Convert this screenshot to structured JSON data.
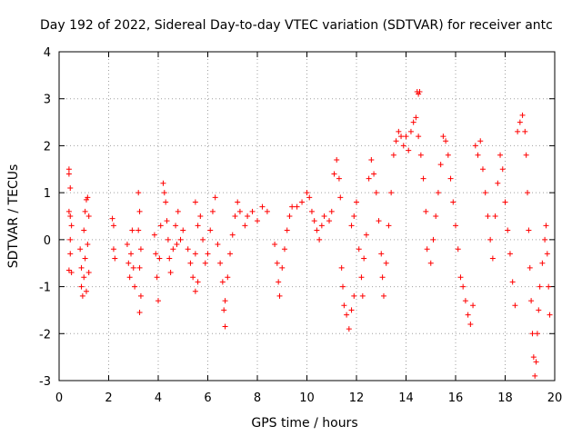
{
  "chart_data": {
    "type": "scatter",
    "title": "Day 192 of 2022, Sidereal Day-to-day VTEC variation (SDTVAR) for receiver antc",
    "xlabel": "GPS time / hours",
    "ylabel": "SDTVAR / TECUs",
    "xlim": [
      0,
      20
    ],
    "ylim": [
      -3,
      4
    ],
    "xticks": [
      "0",
      "2",
      "4",
      "6",
      "8",
      "10",
      "12",
      "14",
      "16",
      "18",
      "20"
    ],
    "yticks": [
      "-3",
      "-2",
      "-1",
      "0",
      "1",
      "2",
      "3",
      "4"
    ],
    "grid": true,
    "marker": "+",
    "color": "#ff0000",
    "series": [
      {
        "name": "SDTVAR",
        "points": [
          [
            0.4,
            1.5
          ],
          [
            0.4,
            1.4
          ],
          [
            0.45,
            1.1
          ],
          [
            0.4,
            0.6
          ],
          [
            0.45,
            0.5
          ],
          [
            0.5,
            0.3
          ],
          [
            0.45,
            0.0
          ],
          [
            0.45,
            -0.3
          ],
          [
            0.4,
            -0.65
          ],
          [
            0.5,
            -0.7
          ],
          [
            0.85,
            -0.2
          ],
          [
            0.9,
            -0.6
          ],
          [
            0.9,
            -1.0
          ],
          [
            0.95,
            -1.2
          ],
          [
            1.0,
            -0.8
          ],
          [
            1.05,
            -0.4
          ],
          [
            1.0,
            0.2
          ],
          [
            1.05,
            0.6
          ],
          [
            1.1,
            0.85
          ],
          [
            1.15,
            0.9
          ],
          [
            1.2,
            0.5
          ],
          [
            1.15,
            -0.1
          ],
          [
            1.2,
            -0.7
          ],
          [
            1.1,
            -1.1
          ],
          [
            2.15,
            0.45
          ],
          [
            2.2,
            0.3
          ],
          [
            2.2,
            -0.2
          ],
          [
            2.25,
            -0.4
          ],
          [
            2.75,
            -0.1
          ],
          [
            2.8,
            -0.5
          ],
          [
            2.85,
            -0.8
          ],
          [
            2.9,
            -0.3
          ],
          [
            2.95,
            0.2
          ],
          [
            3.0,
            -0.6
          ],
          [
            3.05,
            -1.0
          ],
          [
            3.2,
            1.0
          ],
          [
            3.25,
            0.6
          ],
          [
            3.2,
            0.2
          ],
          [
            3.3,
            -0.2
          ],
          [
            3.25,
            -0.6
          ],
          [
            3.3,
            -1.2
          ],
          [
            3.25,
            -1.55
          ],
          [
            3.85,
            0.1
          ],
          [
            3.9,
            -0.3
          ],
          [
            3.95,
            -0.8
          ],
          [
            4.0,
            -1.3
          ],
          [
            4.05,
            -0.4
          ],
          [
            4.1,
            0.3
          ],
          [
            4.2,
            1.2
          ],
          [
            4.25,
            1.0
          ],
          [
            4.3,
            0.8
          ],
          [
            4.35,
            0.4
          ],
          [
            4.4,
            0.0
          ],
          [
            4.45,
            -0.4
          ],
          [
            4.5,
            -0.7
          ],
          [
            4.6,
            -0.2
          ],
          [
            4.7,
            0.3
          ],
          [
            4.8,
            0.6
          ],
          [
            4.75,
            -0.1
          ],
          [
            4.9,
            0.0
          ],
          [
            5.0,
            0.2
          ],
          [
            5.2,
            -0.2
          ],
          [
            5.3,
            -0.5
          ],
          [
            5.4,
            -0.8
          ],
          [
            5.5,
            -1.1
          ],
          [
            5.6,
            -0.9
          ],
          [
            5.5,
            -0.3
          ],
          [
            5.6,
            0.3
          ],
          [
            5.5,
            0.8
          ],
          [
            5.7,
            0.5
          ],
          [
            5.8,
            0.0
          ],
          [
            5.9,
            -0.5
          ],
          [
            6.0,
            -0.3
          ],
          [
            6.1,
            0.2
          ],
          [
            6.2,
            0.6
          ],
          [
            6.3,
            0.9
          ],
          [
            6.4,
            -0.1
          ],
          [
            6.5,
            -0.5
          ],
          [
            6.6,
            -0.9
          ],
          [
            6.65,
            -1.5
          ],
          [
            6.7,
            -1.85
          ],
          [
            6.7,
            -1.3
          ],
          [
            6.8,
            -0.8
          ],
          [
            6.9,
            -0.3
          ],
          [
            7.0,
            0.1
          ],
          [
            7.1,
            0.5
          ],
          [
            7.2,
            0.8
          ],
          [
            7.3,
            0.6
          ],
          [
            7.5,
            0.3
          ],
          [
            7.6,
            0.5
          ],
          [
            7.8,
            0.6
          ],
          [
            8.0,
            0.4
          ],
          [
            8.2,
            0.7
          ],
          [
            8.4,
            0.6
          ],
          [
            8.7,
            -0.1
          ],
          [
            8.8,
            -0.5
          ],
          [
            8.85,
            -0.9
          ],
          [
            8.9,
            -1.2
          ],
          [
            9.0,
            -0.6
          ],
          [
            9.1,
            -0.2
          ],
          [
            9.2,
            0.2
          ],
          [
            9.3,
            0.5
          ],
          [
            9.4,
            0.7
          ],
          [
            9.6,
            0.7
          ],
          [
            9.8,
            0.8
          ],
          [
            10.0,
            1.0
          ],
          [
            10.1,
            0.9
          ],
          [
            10.2,
            0.6
          ],
          [
            10.3,
            0.4
          ],
          [
            10.4,
            0.2
          ],
          [
            10.5,
            0.0
          ],
          [
            10.6,
            0.3
          ],
          [
            10.7,
            0.5
          ],
          [
            10.9,
            0.4
          ],
          [
            11.0,
            0.6
          ],
          [
            11.1,
            1.4
          ],
          [
            11.2,
            1.7
          ],
          [
            11.3,
            1.3
          ],
          [
            11.35,
            0.9
          ],
          [
            11.4,
            -0.6
          ],
          [
            11.45,
            -1.0
          ],
          [
            11.5,
            -1.4
          ],
          [
            11.6,
            -1.6
          ],
          [
            11.7,
            -1.9
          ],
          [
            11.8,
            -1.5
          ],
          [
            11.9,
            -1.2
          ],
          [
            11.8,
            0.3
          ],
          [
            11.9,
            0.5
          ],
          [
            12.0,
            0.8
          ],
          [
            12.1,
            -0.2
          ],
          [
            12.2,
            -0.8
          ],
          [
            12.25,
            -1.2
          ],
          [
            12.3,
            -0.4
          ],
          [
            12.4,
            0.1
          ],
          [
            12.5,
            1.3
          ],
          [
            12.6,
            1.7
          ],
          [
            12.7,
            1.4
          ],
          [
            12.8,
            1.0
          ],
          [
            12.9,
            0.4
          ],
          [
            13.0,
            -0.3
          ],
          [
            13.05,
            -0.8
          ],
          [
            13.1,
            -1.2
          ],
          [
            13.2,
            -0.5
          ],
          [
            13.3,
            0.3
          ],
          [
            13.4,
            1.0
          ],
          [
            13.5,
            1.8
          ],
          [
            13.6,
            2.1
          ],
          [
            13.7,
            2.3
          ],
          [
            13.8,
            2.2
          ],
          [
            13.9,
            2.0
          ],
          [
            14.0,
            2.2
          ],
          [
            14.1,
            1.9
          ],
          [
            14.2,
            2.3
          ],
          [
            14.3,
            2.5
          ],
          [
            14.4,
            2.6
          ],
          [
            14.5,
            2.2
          ],
          [
            14.6,
            1.8
          ],
          [
            14.7,
            1.3
          ],
          [
            14.8,
            0.6
          ],
          [
            14.85,
            -0.2
          ],
          [
            14.45,
            3.15
          ],
          [
            14.5,
            3.1
          ],
          [
            14.55,
            3.15
          ],
          [
            15.0,
            -0.5
          ],
          [
            15.1,
            0.0
          ],
          [
            15.2,
            0.5
          ],
          [
            15.3,
            1.0
          ],
          [
            15.4,
            1.6
          ],
          [
            15.5,
            2.2
          ],
          [
            15.6,
            2.1
          ],
          [
            15.7,
            1.8
          ],
          [
            15.8,
            1.3
          ],
          [
            15.9,
            0.8
          ],
          [
            16.0,
            0.3
          ],
          [
            16.1,
            -0.2
          ],
          [
            16.2,
            -0.8
          ],
          [
            16.3,
            -1.0
          ],
          [
            16.4,
            -1.3
          ],
          [
            16.5,
            -1.6
          ],
          [
            16.6,
            -1.8
          ],
          [
            16.7,
            -1.4
          ],
          [
            16.8,
            2.0
          ],
          [
            16.9,
            1.8
          ],
          [
            17.0,
            2.1
          ],
          [
            17.1,
            1.5
          ],
          [
            17.2,
            1.0
          ],
          [
            17.3,
            0.5
          ],
          [
            17.4,
            0.0
          ],
          [
            17.5,
            -0.4
          ],
          [
            17.6,
            0.5
          ],
          [
            17.7,
            1.2
          ],
          [
            17.8,
            1.8
          ],
          [
            17.9,
            1.5
          ],
          [
            18.0,
            0.8
          ],
          [
            18.1,
            0.2
          ],
          [
            18.2,
            -0.3
          ],
          [
            18.3,
            -0.9
          ],
          [
            18.4,
            -1.4
          ],
          [
            18.5,
            2.3
          ],
          [
            18.6,
            2.5
          ],
          [
            18.7,
            2.65
          ],
          [
            18.8,
            2.3
          ],
          [
            18.85,
            1.8
          ],
          [
            18.9,
            1.0
          ],
          [
            18.95,
            0.2
          ],
          [
            19.0,
            -0.6
          ],
          [
            19.05,
            -1.3
          ],
          [
            19.1,
            -2.0
          ],
          [
            19.15,
            -2.5
          ],
          [
            19.2,
            -2.9
          ],
          [
            19.25,
            -2.6
          ],
          [
            19.3,
            -2.0
          ],
          [
            19.35,
            -1.5
          ],
          [
            19.4,
            -1.0
          ],
          [
            19.5,
            -0.5
          ],
          [
            19.6,
            0.0
          ],
          [
            19.65,
            0.3
          ],
          [
            19.7,
            -0.3
          ],
          [
            19.75,
            -1.0
          ],
          [
            19.8,
            -1.6
          ]
        ]
      }
    ]
  }
}
